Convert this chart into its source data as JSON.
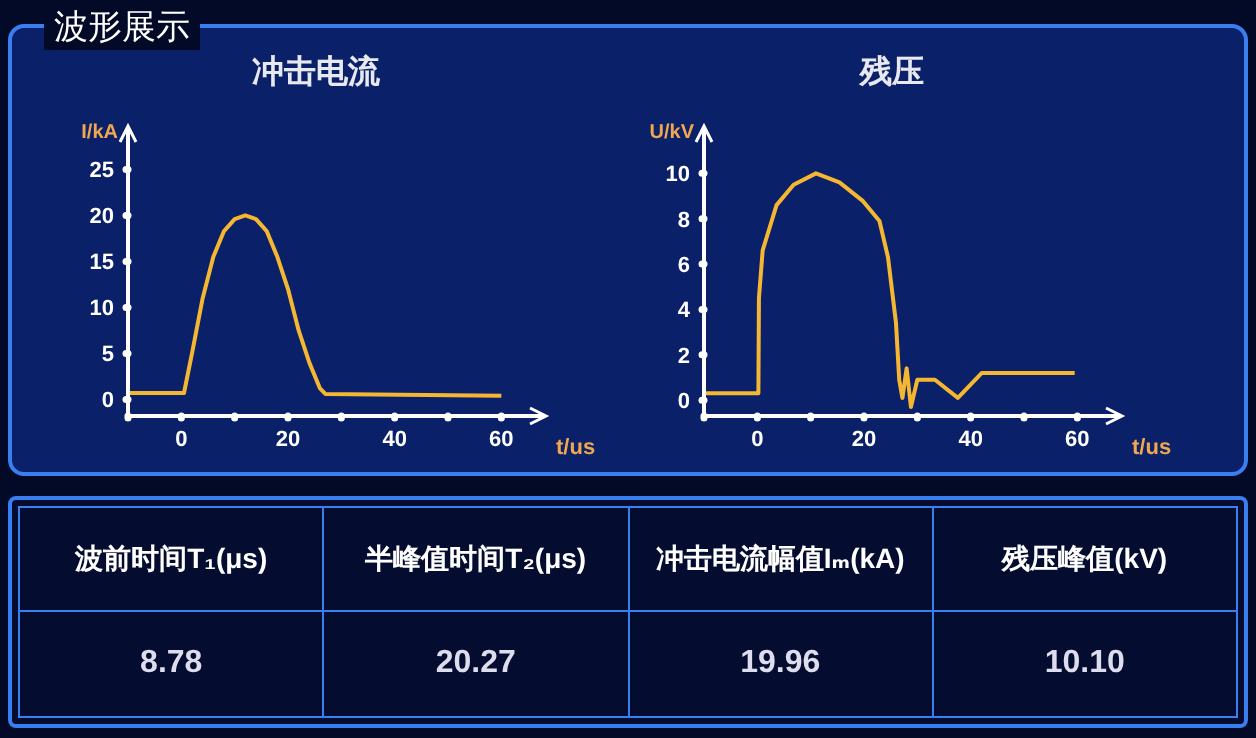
{
  "chart_data": [
    {
      "type": "line",
      "title": "冲击电流",
      "xlabel": "t/us",
      "ylabel": "I/kA",
      "annotations": [
        "波形展示"
      ],
      "marker": "none",
      "line_style": "solid",
      "xlim": [
        -10,
        68
      ],
      "xticks": [
        {
          "value": -10,
          "label": null
        },
        0,
        {
          "value": 10,
          "label": null
        },
        20,
        {
          "value": 30,
          "label": null
        },
        40,
        {
          "value": 50,
          "label": null
        },
        60
      ],
      "ylim": [
        -1.8,
        29.5
      ],
      "yticks": [
        0,
        5,
        10,
        15,
        20,
        25
      ],
      "series": [
        {
          "color": "#f5b731",
          "x": [
            -10,
            0.5,
            2,
            4,
            6,
            8,
            10,
            12,
            14,
            16,
            18,
            20,
            22,
            24,
            26,
            27,
            60
          ],
          "values": [
            0.7,
            0.7,
            5,
            11,
            15.5,
            18.3,
            19.6,
            20,
            19.6,
            18.3,
            15.5,
            12,
            7.5,
            4,
            1.2,
            0.6,
            0.4
          ]
        }
      ]
    },
    {
      "type": "line",
      "title": "残压",
      "xlabel": "t/us",
      "ylabel": "U/kV",
      "marker": "none",
      "line_style": "solid",
      "xlim": [
        -10,
        68
      ],
      "xticks": [
        {
          "value": -10,
          "label": null
        },
        0,
        {
          "value": 10,
          "label": null
        },
        20,
        {
          "value": 30,
          "label": null
        },
        40,
        {
          "value": 50,
          "label": null
        },
        60
      ],
      "ylim": [
        -0.7,
        12
      ],
      "yticks": [
        0,
        2,
        4,
        6,
        8,
        10
      ],
      "series": [
        {
          "color": "#f5b731",
          "x": [
            -10,
            0.2,
            0.3,
            1,
            3.6,
            6.8,
            11,
            15.4,
            19.7,
            22.9,
            24.5,
            26,
            26.6,
            27.2,
            28,
            28.8,
            30,
            33.3,
            37.6,
            42.1,
            59.5
          ],
          "values": [
            0.3,
            0.3,
            4.5,
            6.6,
            8.6,
            9.5,
            10,
            9.6,
            8.8,
            7.9,
            6.3,
            3.4,
            0.9,
            0.1,
            1.4,
            -0.3,
            0.9,
            0.9,
            0.1,
            1.2,
            1.2
          ]
        }
      ]
    },
    {
      "type": "other",
      "annotations": [
        "波前时间T₁(μs)",
        "半峰值时间T₂(μs)",
        "冲击电流幅值Iₘ(kA)",
        "残压峰值(kV)",
        "8.78",
        "20.27",
        "19.96",
        "10.10"
      ]
    }
  ]
}
